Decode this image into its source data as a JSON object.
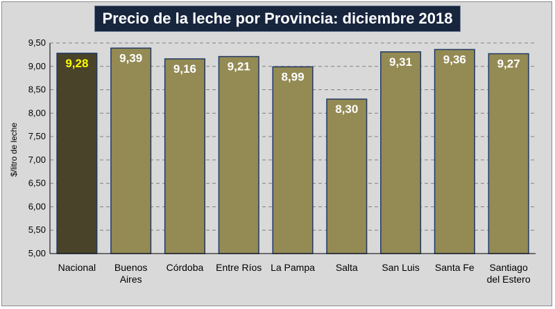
{
  "chart_data": {
    "type": "bar",
    "title": "Precio de la leche por Provincia: diciembre 2018",
    "xlabel": "",
    "ylabel": "$/litro de leche",
    "ylim": [
      5.0,
      9.5
    ],
    "yticks": [
      "5,00",
      "5,50",
      "6,00",
      "6,50",
      "7,00",
      "7,50",
      "8,00",
      "8,50",
      "9,00",
      "9,50"
    ],
    "ytick_values": [
      5.0,
      5.5,
      6.0,
      6.5,
      7.0,
      7.5,
      8.0,
      8.5,
      9.0,
      9.5
    ],
    "grid": true,
    "categories": [
      [
        "Nacional"
      ],
      [
        "Buenos",
        "Aires"
      ],
      [
        "Córdoba"
      ],
      [
        "Entre Ríos"
      ],
      [
        "La Pampa"
      ],
      [
        "Salta"
      ],
      [
        "San Luis"
      ],
      [
        "Santa Fe"
      ],
      [
        "Santiago",
        "del Estero"
      ]
    ],
    "values": [
      9.28,
      9.39,
      9.16,
      9.21,
      8.99,
      8.3,
      9.31,
      9.36,
      9.27
    ],
    "value_labels": [
      "9,28",
      "9,39",
      "9,16",
      "9,21",
      "8,99",
      "8,30",
      "9,31",
      "9,36",
      "9,27"
    ],
    "highlight_index": 0
  },
  "colors": {
    "background": "#d9d9d9",
    "bar": "#948a54",
    "bar_highlight": "#494429",
    "bar_border": "#1f3864",
    "label": "#ffffff",
    "label_highlight": "#ffff00",
    "grid": "#808080"
  }
}
